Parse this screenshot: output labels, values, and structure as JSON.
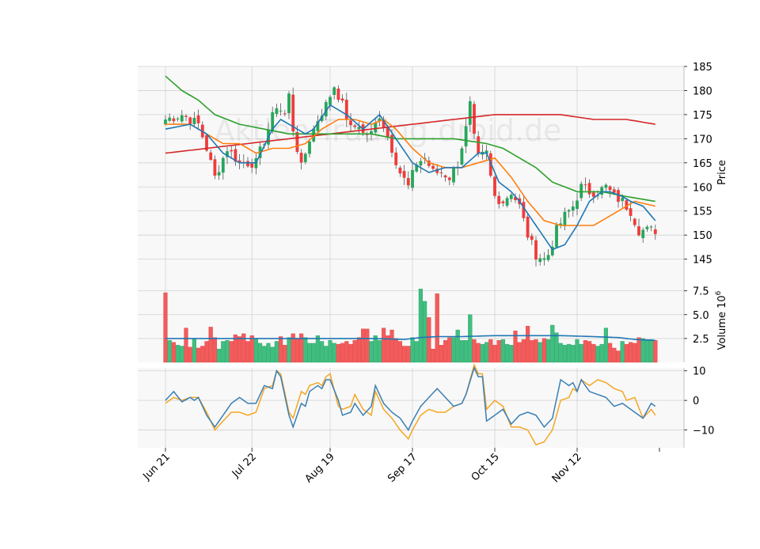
{
  "watermark": "Aktien-Trading.droid.de",
  "colors": {
    "panel_bg": "#f8f8f8",
    "grid": "#d2d2d2",
    "up": "#26a65b",
    "down": "#ef3b3b",
    "up_vol": "#3fbf7f",
    "down_vol": "#f45b5b",
    "ma_blue": "#1f77b4",
    "ma_orange": "#ff7f0e",
    "ma_green": "#2ca02c",
    "ma_red": "#d62728",
    "vol_ma": "#1f77b4",
    "osc_blue": "#3a7fb5",
    "osc_orange": "#f5a623"
  },
  "chart_data": {
    "type": "candlestick",
    "date_labels": [
      "Jun 21",
      "Jul 22",
      "Aug 19",
      "Sep 17",
      "Oct 15",
      "Nov 12"
    ],
    "date_label_index": [
      0,
      21,
      40,
      60,
      80,
      100
    ],
    "n_bars": 120,
    "price": {
      "ylabel": "Price",
      "ylim": [
        141,
        185
      ],
      "ticks": [
        145,
        150,
        155,
        160,
        165,
        170,
        175,
        180,
        185
      ],
      "anchors": [
        [
          0,
          174
        ],
        [
          4,
          175
        ],
        [
          8,
          173
        ],
        [
          10,
          168
        ],
        [
          12,
          162
        ],
        [
          15,
          168
        ],
        [
          18,
          165
        ],
        [
          22,
          165
        ],
        [
          25,
          172
        ],
        [
          27,
          177
        ],
        [
          29,
          175
        ],
        [
          30,
          179
        ],
        [
          31,
          172
        ],
        [
          33,
          164
        ],
        [
          35,
          170
        ],
        [
          37,
          174
        ],
        [
          39,
          177
        ],
        [
          41,
          181
        ],
        [
          43,
          177
        ],
        [
          45,
          172
        ],
        [
          47,
          173
        ],
        [
          48,
          171
        ],
        [
          50,
          171
        ],
        [
          52,
          175
        ],
        [
          53,
          173
        ],
        [
          55,
          168
        ],
        [
          57,
          163
        ],
        [
          59,
          160
        ],
        [
          61,
          165
        ],
        [
          63,
          166
        ],
        [
          65,
          163
        ],
        [
          67,
          163
        ],
        [
          69,
          162
        ],
        [
          71,
          165
        ],
        [
          73,
          172
        ],
        [
          74,
          177
        ],
        [
          75,
          170
        ],
        [
          76,
          166
        ],
        [
          78,
          167
        ],
        [
          79,
          162
        ],
        [
          80,
          158
        ],
        [
          82,
          157
        ],
        [
          84,
          159
        ],
        [
          86,
          156
        ],
        [
          88,
          150
        ],
        [
          90,
          146
        ],
        [
          92,
          145
        ],
        [
          93,
          146
        ],
        [
          95,
          151
        ],
        [
          97,
          154
        ],
        [
          99,
          156
        ],
        [
          101,
          160
        ],
        [
          103,
          159
        ],
        [
          105,
          159
        ],
        [
          107,
          160
        ],
        [
          109,
          158
        ],
        [
          111,
          157
        ],
        [
          113,
          155
        ],
        [
          115,
          151
        ],
        [
          117,
          151
        ],
        [
          119,
          151
        ]
      ],
      "ma_blue": [
        [
          0,
          172
        ],
        [
          6,
          173
        ],
        [
          10,
          171
        ],
        [
          14,
          167
        ],
        [
          18,
          165
        ],
        [
          22,
          165
        ],
        [
          26,
          172
        ],
        [
          28,
          174
        ],
        [
          32,
          172
        ],
        [
          34,
          171
        ],
        [
          36,
          172
        ],
        [
          40,
          177
        ],
        [
          44,
          175
        ],
        [
          48,
          172
        ],
        [
          52,
          175
        ],
        [
          56,
          170
        ],
        [
          60,
          165
        ],
        [
          64,
          163
        ],
        [
          68,
          164
        ],
        [
          72,
          164
        ],
        [
          76,
          167
        ],
        [
          78,
          167
        ],
        [
          81,
          161
        ],
        [
          84,
          159
        ],
        [
          86,
          157
        ],
        [
          90,
          152
        ],
        [
          94,
          147
        ],
        [
          97,
          148
        ],
        [
          100,
          152
        ],
        [
          103,
          157
        ],
        [
          106,
          159
        ],
        [
          108,
          159
        ],
        [
          111,
          158
        ],
        [
          113,
          157
        ],
        [
          116,
          156
        ],
        [
          119,
          153
        ]
      ],
      "ma_orange": [
        [
          0,
          173
        ],
        [
          6,
          173
        ],
        [
          14,
          169
        ],
        [
          18,
          169
        ],
        [
          22,
          167
        ],
        [
          26,
          168
        ],
        [
          30,
          168
        ],
        [
          34,
          169
        ],
        [
          38,
          172
        ],
        [
          42,
          174
        ],
        [
          46,
          174
        ],
        [
          50,
          173
        ],
        [
          53,
          174
        ],
        [
          56,
          172
        ],
        [
          60,
          168
        ],
        [
          64,
          165
        ],
        [
          68,
          164
        ],
        [
          72,
          164
        ],
        [
          76,
          165
        ],
        [
          80,
          166
        ],
        [
          84,
          162
        ],
        [
          88,
          157
        ],
        [
          92,
          153
        ],
        [
          96,
          152
        ],
        [
          100,
          152
        ],
        [
          104,
          152
        ],
        [
          106,
          153
        ],
        [
          110,
          155
        ],
        [
          114,
          157
        ],
        [
          119,
          156
        ]
      ],
      "ma_green": [
        [
          0,
          183
        ],
        [
          4,
          180
        ],
        [
          8,
          178
        ],
        [
          12,
          175
        ],
        [
          18,
          173
        ],
        [
          24,
          172
        ],
        [
          30,
          171
        ],
        [
          40,
          171
        ],
        [
          50,
          171
        ],
        [
          56,
          170
        ],
        [
          62,
          170
        ],
        [
          70,
          170
        ],
        [
          78,
          169
        ],
        [
          82,
          168
        ],
        [
          86,
          166
        ],
        [
          90,
          164
        ],
        [
          94,
          161
        ],
        [
          100,
          159
        ],
        [
          106,
          159
        ],
        [
          112,
          158
        ],
        [
          119,
          157
        ]
      ],
      "ma_red": [
        [
          0,
          167
        ],
        [
          10,
          168
        ],
        [
          20,
          169
        ],
        [
          30,
          170
        ],
        [
          40,
          171
        ],
        [
          50,
          172
        ],
        [
          60,
          173
        ],
        [
          70,
          174
        ],
        [
          80,
          175
        ],
        [
          88,
          175
        ],
        [
          96,
          175
        ],
        [
          104,
          174
        ],
        [
          112,
          174
        ],
        [
          119,
          173
        ]
      ]
    },
    "volume": {
      "ylabel": "Volume  10^6",
      "ylim": [
        0,
        8.8
      ],
      "ticks": [
        2.5,
        5.0,
        7.5
      ],
      "tick_labels": [
        "2.5",
        "5.0",
        "7.5"
      ],
      "values": [
        7.3,
        2.3,
        2.1,
        1.8,
        1.7,
        3.6,
        1.6,
        2.5,
        1.5,
        1.7,
        2.2,
        3.7,
        2.6,
        1.4,
        2.2,
        2.3,
        2.2,
        2.9,
        2.7,
        3.0,
        2.2,
        2.8,
        2.5,
        2.0,
        1.7,
        2.0,
        1.6,
        2.2,
        2.7,
        1.8,
        2.6,
        3.0,
        2.5,
        3.0,
        2.6,
        2.0,
        2.0,
        2.8,
        2.2,
        1.7,
        2.3,
        2.0,
        1.9,
        2.0,
        2.2,
        1.9,
        2.3,
        2.6,
        3.5,
        3.5,
        2.2,
        2.8,
        2.3,
        3.6,
        2.8,
        3.4,
        2.5,
        2.2,
        1.7,
        1.7,
        2.6,
        2.2,
        7.7,
        6.4,
        4.7,
        1.4,
        7.2,
        1.8,
        2.3,
        2.6,
        2.6,
        3.4,
        2.3,
        2.3,
        5.0,
        2.4,
        2.0,
        1.9,
        2.1,
        2.4,
        1.8,
        2.3,
        2.4,
        1.9,
        1.8,
        3.3,
        2.1,
        2.4,
        3.8,
        2.3,
        2.4,
        2.1,
        2.5,
        2.4,
        3.9,
        3.1,
        2.0,
        1.8,
        1.9,
        1.8,
        2.4,
        1.9,
        2.3,
        2.2,
        1.9,
        1.7,
        1.9,
        3.6,
        2.0,
        1.5,
        1.2,
        2.2,
        1.9,
        2.1,
        2.0,
        2.6,
        2.5,
        2.4,
        2.4,
        2.3
      ],
      "ma_anchors": [
        [
          0,
          2.5
        ],
        [
          10,
          2.5
        ],
        [
          20,
          2.5
        ],
        [
          30,
          2.5
        ],
        [
          40,
          2.5
        ],
        [
          50,
          2.5
        ],
        [
          58,
          2.4
        ],
        [
          62,
          2.6
        ],
        [
          66,
          2.7
        ],
        [
          72,
          2.7
        ],
        [
          80,
          2.8
        ],
        [
          90,
          2.8
        ],
        [
          96,
          2.8
        ],
        [
          104,
          2.7
        ],
        [
          110,
          2.6
        ],
        [
          114,
          2.4
        ],
        [
          119,
          2.3
        ]
      ]
    },
    "oscillator": {
      "ylim": [
        -16,
        11
      ],
      "ticks": [
        10,
        0,
        -10
      ],
      "tick_labels": [
        "10",
        "0",
        "−10"
      ],
      "blue": [
        [
          0,
          0
        ],
        [
          2,
          3
        ],
        [
          4,
          -0.5
        ],
        [
          6,
          1
        ],
        [
          7,
          0
        ],
        [
          8,
          1
        ],
        [
          10,
          -5
        ],
        [
          12,
          -9
        ],
        [
          14,
          -5
        ],
        [
          16,
          -1
        ],
        [
          18,
          1
        ],
        [
          20,
          -1
        ],
        [
          22,
          -1
        ],
        [
          24,
          5
        ],
        [
          26,
          4
        ],
        [
          27,
          10
        ],
        [
          28,
          8
        ],
        [
          30,
          -5
        ],
        [
          31,
          -9
        ],
        [
          33,
          -1
        ],
        [
          34,
          -2
        ],
        [
          35,
          3
        ],
        [
          37,
          5
        ],
        [
          38,
          4
        ],
        [
          39,
          7
        ],
        [
          40,
          7
        ],
        [
          42,
          0
        ],
        [
          43,
          -5
        ],
        [
          45,
          -4
        ],
        [
          46,
          -1
        ],
        [
          48,
          -5
        ],
        [
          50,
          -2
        ],
        [
          51,
          5
        ],
        [
          53,
          -1
        ],
        [
          55,
          -4
        ],
        [
          57,
          -6
        ],
        [
          59,
          -10
        ],
        [
          60,
          -7
        ],
        [
          62,
          -2
        ],
        [
          64,
          1
        ],
        [
          66,
          4
        ],
        [
          68,
          1
        ],
        [
          70,
          -2
        ],
        [
          72,
          -1
        ],
        [
          73,
          2
        ],
        [
          75,
          11
        ],
        [
          76,
          8
        ],
        [
          77,
          8
        ],
        [
          78,
          -7
        ],
        [
          80,
          -5
        ],
        [
          82,
          -3
        ],
        [
          84,
          -8
        ],
        [
          86,
          -5
        ],
        [
          88,
          -4
        ],
        [
          90,
          -5
        ],
        [
          92,
          -9
        ],
        [
          94,
          -6
        ],
        [
          96,
          7
        ],
        [
          98,
          5
        ],
        [
          99,
          6
        ],
        [
          100,
          3
        ],
        [
          101,
          7
        ],
        [
          103,
          3
        ],
        [
          105,
          2
        ],
        [
          107,
          1
        ],
        [
          109,
          -2
        ],
        [
          111,
          -1
        ],
        [
          112,
          -2
        ],
        [
          114,
          -4
        ],
        [
          116,
          -6
        ],
        [
          118,
          -1
        ],
        [
          119,
          -2
        ]
      ],
      "orange": [
        [
          0,
          -1
        ],
        [
          2,
          1
        ],
        [
          4,
          0
        ],
        [
          6,
          1
        ],
        [
          8,
          1
        ],
        [
          10,
          -4
        ],
        [
          12,
          -10
        ],
        [
          14,
          -7
        ],
        [
          16,
          -4
        ],
        [
          18,
          -4
        ],
        [
          20,
          -5
        ],
        [
          22,
          -4
        ],
        [
          24,
          4
        ],
        [
          26,
          5
        ],
        [
          27,
          10
        ],
        [
          28,
          9
        ],
        [
          30,
          -4
        ],
        [
          31,
          -6
        ],
        [
          33,
          3
        ],
        [
          34,
          2
        ],
        [
          35,
          5
        ],
        [
          37,
          6
        ],
        [
          38,
          5
        ],
        [
          39,
          8
        ],
        [
          40,
          9
        ],
        [
          42,
          -2
        ],
        [
          43,
          -3
        ],
        [
          45,
          -2
        ],
        [
          46,
          2
        ],
        [
          48,
          -3
        ],
        [
          50,
          -5
        ],
        [
          51,
          3
        ],
        [
          53,
          -3
        ],
        [
          55,
          -6
        ],
        [
          57,
          -10
        ],
        [
          59,
          -13
        ],
        [
          60,
          -10
        ],
        [
          62,
          -5
        ],
        [
          64,
          -3
        ],
        [
          66,
          -4
        ],
        [
          68,
          -4
        ],
        [
          70,
          -2
        ],
        [
          72,
          -1
        ],
        [
          73,
          2
        ],
        [
          75,
          12
        ],
        [
          76,
          9
        ],
        [
          77,
          9
        ],
        [
          78,
          -3
        ],
        [
          80,
          0
        ],
        [
          82,
          -2
        ],
        [
          84,
          -9
        ],
        [
          86,
          -9
        ],
        [
          88,
          -10
        ],
        [
          90,
          -15
        ],
        [
          92,
          -14
        ],
        [
          94,
          -10
        ],
        [
          96,
          0
        ],
        [
          98,
          1
        ],
        [
          99,
          4
        ],
        [
          100,
          3
        ],
        [
          101,
          7
        ],
        [
          103,
          5
        ],
        [
          105,
          7
        ],
        [
          107,
          6
        ],
        [
          109,
          4
        ],
        [
          111,
          3
        ],
        [
          112,
          0
        ],
        [
          114,
          1
        ],
        [
          116,
          -6
        ],
        [
          118,
          -3
        ],
        [
          119,
          -5
        ]
      ]
    }
  }
}
